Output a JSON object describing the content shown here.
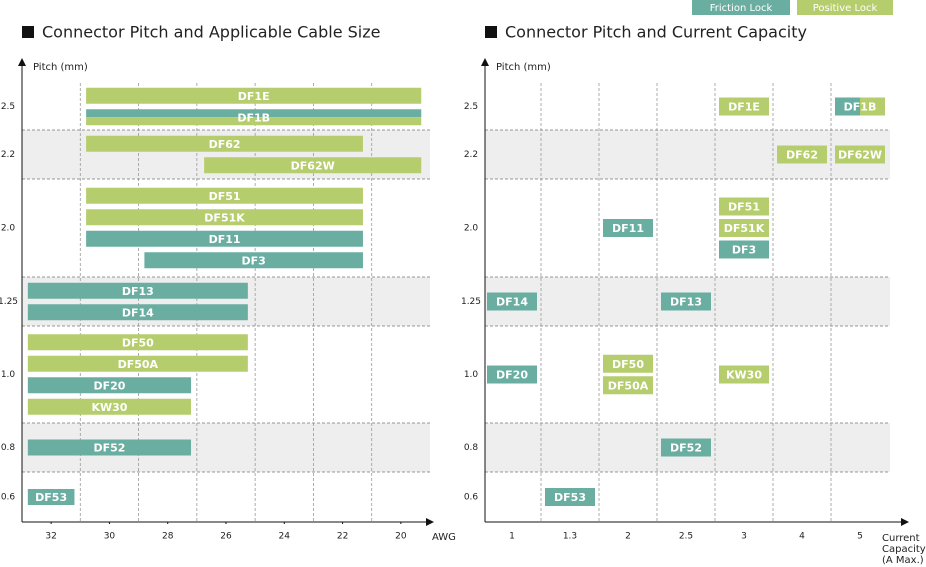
{
  "legend": [
    {
      "name": "Friction Lock",
      "color": "#6aaea2"
    },
    {
      "name": "Positive Lock",
      "color": "#b6cd6d"
    }
  ],
  "chart_data": [
    {
      "type": "range-bar",
      "title": "Connector Pitch and Applicable Cable Size",
      "y_label": "Pitch (mm)",
      "x_label": "AWG",
      "xlim": [
        33,
        19
      ],
      "xticks": [
        32,
        30,
        28,
        26,
        24,
        22,
        20
      ],
      "xgrid": [
        31,
        29,
        27,
        25,
        23,
        21
      ],
      "rows": [
        {
          "label": "2.5",
          "bars": [
            {
              "name": "DF1E",
              "lock": [
                1
              ],
              "start": 30.8,
              "end": 19.3
            },
            {
              "name": "DF1B",
              "lock": [
                0,
                1
              ],
              "start": 30.8,
              "end": 19.3
            }
          ]
        },
        {
          "label": "2.2",
          "bars": [
            {
              "name": "DF62",
              "lock": [
                1
              ],
              "start": 30.8,
              "end": 21.3
            },
            {
              "name": "DF62W",
              "lock": [
                1
              ],
              "start": 26.75,
              "end": 19.3
            }
          ]
        },
        {
          "label": "2.0",
          "bars": [
            {
              "name": "DF51",
              "lock": [
                1
              ],
              "start": 30.8,
              "end": 21.3
            },
            {
              "name": "DF51K",
              "lock": [
                1
              ],
              "start": 30.8,
              "end": 21.3
            },
            {
              "name": "DF11",
              "lock": [
                0
              ],
              "start": 30.8,
              "end": 21.3
            },
            {
              "name": "DF3",
              "lock": [
                0
              ],
              "start": 28.8,
              "end": 21.3
            }
          ]
        },
        {
          "label": "1.25",
          "bars": [
            {
              "name": "DF13",
              "lock": [
                0
              ],
              "start": 32.8,
              "end": 25.25
            },
            {
              "name": "DF14",
              "lock": [
                0
              ],
              "start": 32.8,
              "end": 25.25
            }
          ]
        },
        {
          "label": "1.0",
          "bars": [
            {
              "name": "DF50",
              "lock": [
                1
              ],
              "start": 32.8,
              "end": 25.25
            },
            {
              "name": "DF50A",
              "lock": [
                1
              ],
              "start": 32.8,
              "end": 25.25
            },
            {
              "name": "DF20",
              "lock": [
                0
              ],
              "start": 32.8,
              "end": 27.2
            },
            {
              "name": "KW30",
              "lock": [
                1
              ],
              "start": 32.8,
              "end": 27.2
            }
          ]
        },
        {
          "label": "0.8",
          "bars": [
            {
              "name": "DF52",
              "lock": [
                0
              ],
              "start": 32.8,
              "end": 27.2
            }
          ]
        },
        {
          "label": "0.6",
          "bars": [
            {
              "name": "DF53",
              "lock": [
                0
              ],
              "start": 32.8,
              "end": 31.2
            }
          ]
        }
      ]
    },
    {
      "type": "matrix",
      "title": "Connector Pitch and Current Capacity",
      "y_label": "Pitch (mm)",
      "x_label": [
        "Current",
        "Capacity",
        "(A Max.)"
      ],
      "categories": [
        "1",
        "1.3",
        "2",
        "2.5",
        "3",
        "4",
        "5"
      ],
      "rows": [
        {
          "label": "2.5",
          "items": [
            {
              "name": "DF1E",
              "lock": [
                1
              ],
              "x": "3"
            },
            {
              "name": "DF1B",
              "lock": [
                0,
                1
              ],
              "x": "5"
            }
          ]
        },
        {
          "label": "2.2",
          "items": [
            {
              "name": "DF62",
              "lock": [
                1
              ],
              "x": "4"
            },
            {
              "name": "DF62W",
              "lock": [
                1
              ],
              "x": "5"
            }
          ]
        },
        {
          "label": "2.0",
          "items": [
            {
              "name": "DF51",
              "lock": [
                1
              ],
              "x": "3"
            },
            {
              "name": "DF51K",
              "lock": [
                1
              ],
              "x": "3"
            },
            {
              "name": "DF3",
              "lock": [
                0
              ],
              "x": "3"
            },
            {
              "name": "DF11",
              "lock": [
                0
              ],
              "x": "2"
            }
          ]
        },
        {
          "label": "1.25",
          "items": [
            {
              "name": "DF14",
              "lock": [
                0
              ],
              "x": "1"
            },
            {
              "name": "DF13",
              "lock": [
                0
              ],
              "x": "2.5"
            }
          ]
        },
        {
          "label": "1.0",
          "items": [
            {
              "name": "DF20",
              "lock": [
                0
              ],
              "x": "1"
            },
            {
              "name": "DF50",
              "lock": [
                1
              ],
              "x": "2"
            },
            {
              "name": "DF50A",
              "lock": [
                1
              ],
              "x": "2"
            },
            {
              "name": "KW30",
              "lock": [
                1
              ],
              "x": "3"
            }
          ]
        },
        {
          "label": "0.8",
          "items": [
            {
              "name": "DF52",
              "lock": [
                0
              ],
              "x": "2.5"
            }
          ]
        },
        {
          "label": "0.6",
          "items": [
            {
              "name": "DF53",
              "lock": [
                0
              ],
              "x": "1.3"
            }
          ]
        }
      ]
    }
  ]
}
